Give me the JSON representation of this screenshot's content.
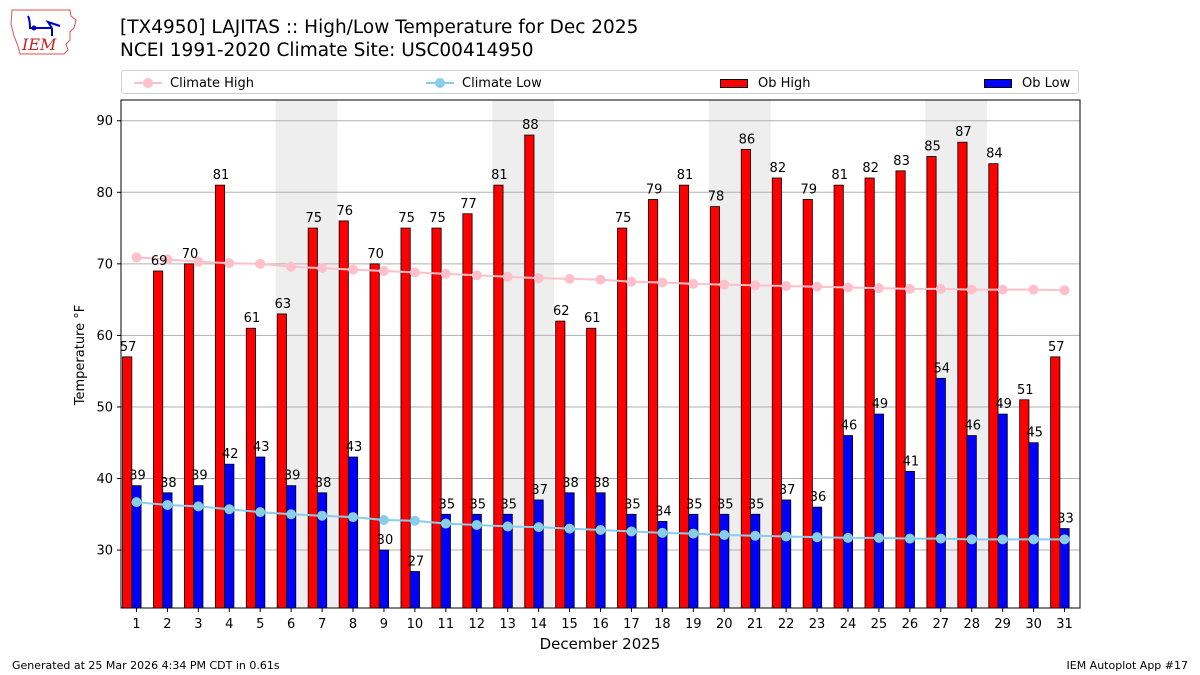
{
  "header": {
    "title_line1": "[TX4950] LAJITAS :: High/Low Temperature for Dec 2025",
    "title_line2": "NCEI 1991-2020 Climate Site: USC00414950",
    "logo_text": "IEM"
  },
  "legend": {
    "items": [
      {
        "label": "Climate High",
        "kind": "line-marker",
        "color": "#FFC0CB"
      },
      {
        "label": "Climate Low",
        "kind": "line-marker",
        "color": "#87CEEB"
      },
      {
        "label": "Ob High",
        "kind": "bar",
        "color": "#FF0000"
      },
      {
        "label": "Ob Low",
        "kind": "bar",
        "color": "#0000FF"
      }
    ]
  },
  "footer": {
    "left": "Generated at 25 Mar 2026 4:34 PM CDT in 0.61s",
    "right": "IEM Autoplot App #17"
  },
  "chart_data": {
    "type": "bar",
    "title": "[TX4950] LAJITAS :: High/Low Temperature for Dec 2025",
    "subtitle": "NCEI 1991-2020 Climate Site: USC00414950",
    "xlabel": "December 2025",
    "ylabel": "Temperature °F",
    "x": [
      1,
      2,
      3,
      4,
      5,
      6,
      7,
      8,
      9,
      10,
      11,
      12,
      13,
      14,
      15,
      16,
      17,
      18,
      19,
      20,
      21,
      22,
      23,
      24,
      25,
      26,
      27,
      28,
      29,
      30,
      31
    ],
    "xlim": [
      0.5,
      31.5
    ],
    "ylim": [
      21.9,
      92.9
    ],
    "yticks": [
      30,
      40,
      50,
      60,
      70,
      80,
      90
    ],
    "grid": "y",
    "legend_position": "top (above plot, full width)",
    "weekend_shading": [
      [
        6,
        7
      ],
      [
        13,
        14
      ],
      [
        20,
        21
      ],
      [
        27,
        28
      ]
    ],
    "shading_color": "#EEEEEE",
    "series": [
      {
        "name": "Ob High",
        "type": "bar",
        "color": "#FF0000",
        "values": [
          57,
          69,
          70,
          81,
          61,
          63,
          75,
          76,
          70,
          75,
          75,
          77,
          81,
          88,
          62,
          61,
          75,
          79,
          81,
          78,
          86,
          82,
          79,
          81,
          82,
          83,
          85,
          87,
          84,
          51,
          57
        ]
      },
      {
        "name": "Ob Low",
        "type": "bar",
        "color": "#0000FF",
        "values": [
          39,
          38,
          39,
          42,
          43,
          39,
          38,
          43,
          30,
          27,
          35,
          35,
          35,
          37,
          38,
          38,
          35,
          34,
          35,
          35,
          35,
          37,
          36,
          46,
          49,
          41,
          54,
          46,
          49,
          45,
          33
        ]
      },
      {
        "name": "Climate High",
        "type": "line",
        "color": "#FFC0CB",
        "values": [
          70.9,
          70.6,
          70.3,
          70.1,
          70.0,
          69.6,
          69.4,
          69.2,
          69.0,
          68.8,
          68.6,
          68.4,
          68.2,
          68.0,
          67.9,
          67.8,
          67.5,
          67.4,
          67.2,
          67.1,
          67.0,
          66.9,
          66.8,
          66.7,
          66.6,
          66.5,
          66.5,
          66.4,
          66.4,
          66.4,
          66.3
        ]
      },
      {
        "name": "Climate Low",
        "type": "line",
        "color": "#87CEEB",
        "values": [
          36.7,
          36.3,
          36.1,
          35.7,
          35.3,
          35.0,
          34.8,
          34.6,
          34.2,
          34.1,
          33.7,
          33.5,
          33.3,
          33.2,
          33.0,
          32.8,
          32.6,
          32.4,
          32.3,
          32.1,
          32.0,
          31.9,
          31.8,
          31.7,
          31.7,
          31.6,
          31.6,
          31.5,
          31.5,
          31.5,
          31.5
        ]
      }
    ]
  }
}
